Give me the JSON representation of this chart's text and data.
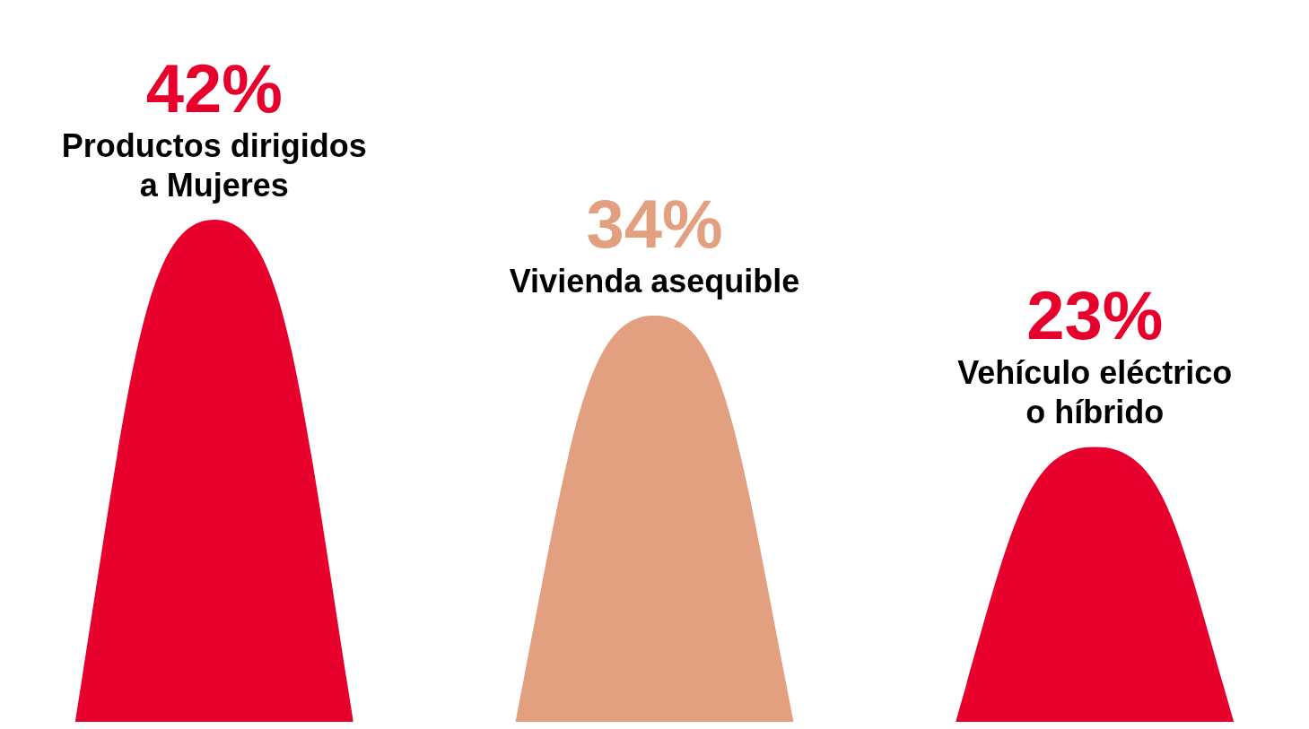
{
  "chart_data": {
    "type": "bar",
    "data_labels": true,
    "categories": [
      "Productos dirigidos a Mujeres",
      "Vivienda asequible",
      "Vehículo eléctrico o híbrido"
    ],
    "values": [
      42,
      34,
      23
    ],
    "colors": [
      "#e8002d",
      "#e3a080",
      "#e8002d"
    ],
    "value_labels": [
      "42%",
      "34%",
      "23%"
    ]
  }
}
